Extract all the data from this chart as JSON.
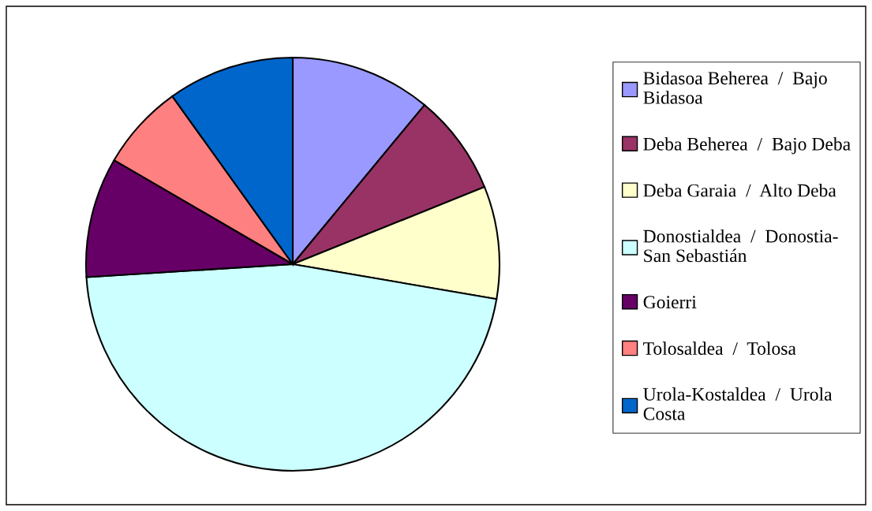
{
  "chart_data": {
    "type": "pie",
    "categories": [
      "Bidasoa Beherea  /  Bajo Bidasoa",
      "Deba Beherea  /  Bajo Deba",
      "Deba Garaia  /  Alto Deba",
      "Donostialdea  /  Donostia-San Sebastián",
      "Goierri",
      "Tolosaldea  /  Tolosa",
      "Urola-Kostaldea  /  Urola Costa"
    ],
    "values": [
      11.0,
      7.9,
      8.8,
      46.3,
      9.4,
      6.7,
      9.9
    ],
    "colors": [
      "#9999ff",
      "#993366",
      "#ffffcc",
      "#ccffff",
      "#660066",
      "#ff8080",
      "#0066cc"
    ],
    "legend": "right"
  }
}
